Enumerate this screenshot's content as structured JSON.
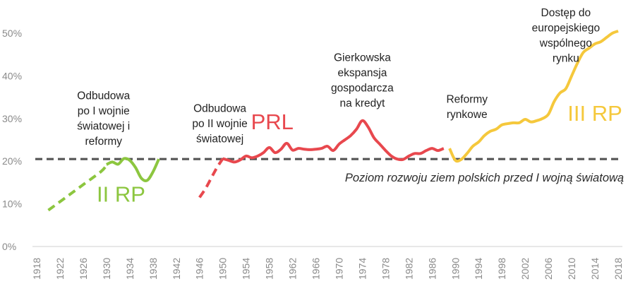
{
  "chart_data": {
    "type": "line",
    "xlim": [
      1918,
      2018
    ],
    "ylim": [
      0,
      50
    ],
    "x_ticks": [
      1918,
      1922,
      1926,
      1930,
      1934,
      1938,
      1942,
      1946,
      1950,
      1954,
      1958,
      1962,
      1966,
      1970,
      1974,
      1978,
      1982,
      1986,
      1990,
      1994,
      1998,
      2002,
      2006,
      2010,
      2014,
      2018
    ],
    "y_ticks": [
      {
        "value": 0,
        "label": "0%"
      },
      {
        "value": 10,
        "label": "10%"
      },
      {
        "value": 20,
        "label": "20%"
      },
      {
        "value": 30,
        "label": "30%"
      },
      {
        "value": 40,
        "label": "40%"
      },
      {
        "value": 50,
        "label": "50%"
      }
    ],
    "baseline": {
      "value": 20.5,
      "label": "Poziom rozwoju ziem polskich przed I wojną światową",
      "color": "#555555"
    },
    "colors": {
      "ii_rp": "#8cc63f",
      "prl": "#e8484e",
      "iii_rp": "#f5c83c"
    },
    "series": [
      {
        "key": "ii_rp_dashed",
        "era": "ii_rp",
        "dashed": true,
        "points": [
          [
            1920,
            8.5
          ],
          [
            1923,
            11.5
          ],
          [
            1926,
            14.5
          ],
          [
            1929,
            17.5
          ],
          [
            1930,
            19
          ]
        ]
      },
      {
        "key": "ii_rp",
        "era": "ii_rp",
        "dashed": false,
        "points": [
          [
            1930,
            19.2
          ],
          [
            1931,
            19.8
          ],
          [
            1932,
            19.3
          ],
          [
            1933,
            20.6
          ],
          [
            1934,
            20.2
          ],
          [
            1935,
            18.5
          ],
          [
            1936,
            16
          ],
          [
            1937,
            15.5
          ],
          [
            1938,
            17.5
          ],
          [
            1939,
            20.5
          ]
        ]
      },
      {
        "key": "prl_dashed",
        "era": "prl",
        "dashed": true,
        "points": [
          [
            1946,
            11.5
          ],
          [
            1947,
            13.5
          ],
          [
            1948,
            16
          ],
          [
            1949,
            18.5
          ],
          [
            1950,
            20.6
          ]
        ]
      },
      {
        "key": "prl",
        "era": "prl",
        "dashed": false,
        "points": [
          [
            1950,
            20.6
          ],
          [
            1951,
            20.2
          ],
          [
            1952,
            19.8
          ],
          [
            1953,
            20.3
          ],
          [
            1954,
            21.2
          ],
          [
            1955,
            20.8
          ],
          [
            1956,
            21.2
          ],
          [
            1957,
            22
          ],
          [
            1958,
            23.2
          ],
          [
            1959,
            22
          ],
          [
            1960,
            22.8
          ],
          [
            1961,
            24.2
          ],
          [
            1962,
            22.6
          ],
          [
            1963,
            23
          ],
          [
            1964,
            22.8
          ],
          [
            1965,
            22.7
          ],
          [
            1966,
            22.8
          ],
          [
            1967,
            23
          ],
          [
            1968,
            23.5
          ],
          [
            1969,
            22.5
          ],
          [
            1970,
            24
          ],
          [
            1971,
            25
          ],
          [
            1972,
            26
          ],
          [
            1973,
            27.5
          ],
          [
            1974,
            29.5
          ],
          [
            1975,
            28
          ],
          [
            1976,
            25.5
          ],
          [
            1977,
            24
          ],
          [
            1978,
            22.5
          ],
          [
            1979,
            21.2
          ],
          [
            1980,
            20.5
          ],
          [
            1981,
            20.4
          ],
          [
            1982,
            21.2
          ],
          [
            1983,
            21.8
          ],
          [
            1984,
            21.8
          ],
          [
            1985,
            22.5
          ],
          [
            1986,
            23
          ],
          [
            1987,
            22.5
          ],
          [
            1988,
            23
          ]
        ]
      },
      {
        "key": "iii_rp",
        "era": "iii_rp",
        "dashed": false,
        "points": [
          [
            1989,
            23
          ],
          [
            1990,
            20.2
          ],
          [
            1991,
            20.4
          ],
          [
            1992,
            21.8
          ],
          [
            1993,
            23.5
          ],
          [
            1994,
            24.5
          ],
          [
            1995,
            26
          ],
          [
            1996,
            27
          ],
          [
            1997,
            27.5
          ],
          [
            1998,
            28.5
          ],
          [
            1999,
            28.8
          ],
          [
            2000,
            29
          ],
          [
            2001,
            29
          ],
          [
            2002,
            29.8
          ],
          [
            2003,
            29.2
          ],
          [
            2004,
            29.5
          ],
          [
            2005,
            30
          ],
          [
            2006,
            31
          ],
          [
            2007,
            34
          ],
          [
            2008,
            36
          ],
          [
            2009,
            37
          ],
          [
            2010,
            40
          ],
          [
            2011,
            43
          ],
          [
            2012,
            45.5
          ],
          [
            2013,
            46.5
          ],
          [
            2014,
            47.5
          ],
          [
            2015,
            48
          ],
          [
            2016,
            49
          ],
          [
            2017,
            50
          ],
          [
            2018,
            50.5
          ]
        ]
      }
    ],
    "annotations": [
      {
        "lines": [
          "Odbudowa",
          "po I wojnie",
          "światowej i",
          "reformy"
        ],
        "x": 1929.5,
        "y": 34.5
      },
      {
        "lines": [
          "Odbudowa",
          "po II wojnie",
          "światowej"
        ],
        "x": 1949.5,
        "y": 31.5
      },
      {
        "lines": [
          "Gierkowska",
          "ekspansja",
          "gospodarcza",
          "na kredyt"
        ],
        "x": 1974,
        "y": 43.5
      },
      {
        "lines": [
          "Reformy",
          "rynkowe"
        ],
        "x": 1992,
        "y": 33.7
      },
      {
        "lines": [
          "Dostęp do",
          "europejskiego",
          "wspólnego",
          "rynku"
        ],
        "x": 2009,
        "y": 54
      }
    ],
    "era_labels": [
      {
        "text": "II RP",
        "era": "ii_rp",
        "x": 1932.5,
        "y": 10.5
      },
      {
        "text": "PRL",
        "era": "prl",
        "x": 1958.5,
        "y": 27.5
      },
      {
        "text": "III RP",
        "era": "iii_rp",
        "x": 2014,
        "y": 29.5
      }
    ]
  }
}
